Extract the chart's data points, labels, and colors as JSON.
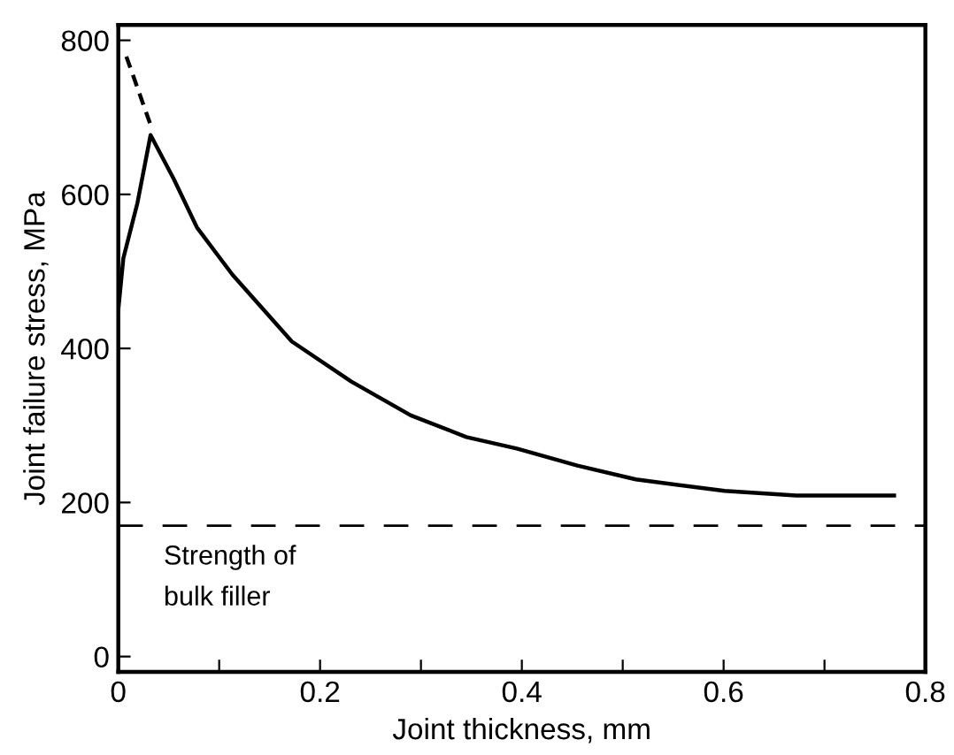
{
  "chart_data": {
    "type": "line",
    "xlabel": "Joint thickness, mm",
    "ylabel": "Joint failure stress, MPa",
    "series": [
      {
        "color": "#000000",
        "line_style": "solid",
        "x": [
          0,
          0.005,
          0.019,
          0.032,
          0.055,
          0.078,
          0.113,
          0.172,
          0.231,
          0.29,
          0.345,
          0.395,
          0.455,
          0.513,
          0.601,
          0.672,
          0.769
        ],
        "values": [
          450,
          517,
          589,
          677,
          620,
          557,
          496,
          409,
          357,
          313,
          285,
          270,
          248,
          230,
          215,
          209,
          209
        ]
      },
      {
        "color": "#000000",
        "line_style": "dashed",
        "x": [
          0.008,
          0.032
        ],
        "values": [
          779,
          690
        ]
      }
    ],
    "ref_lines": [
      {
        "axis": "y",
        "value": 170,
        "label": "Strength of\nbulk filler",
        "color": "#000000",
        "line_style": "dashed"
      }
    ],
    "xlim": [
      0,
      0.8
    ],
    "ylim": [
      -20,
      820
    ],
    "xticks": [
      0,
      {
        "value": 0.1,
        "label": null
      },
      0.2,
      {
        "value": 0.3,
        "label": null
      },
      0.4,
      {
        "value": 0.5,
        "label": null
      },
      0.6,
      {
        "value": 0.7,
        "label": null
      },
      0.8
    ],
    "yticks": [
      0,
      200,
      400,
      600,
      800
    ],
    "grid": false,
    "legend": false,
    "marker": "none"
  }
}
